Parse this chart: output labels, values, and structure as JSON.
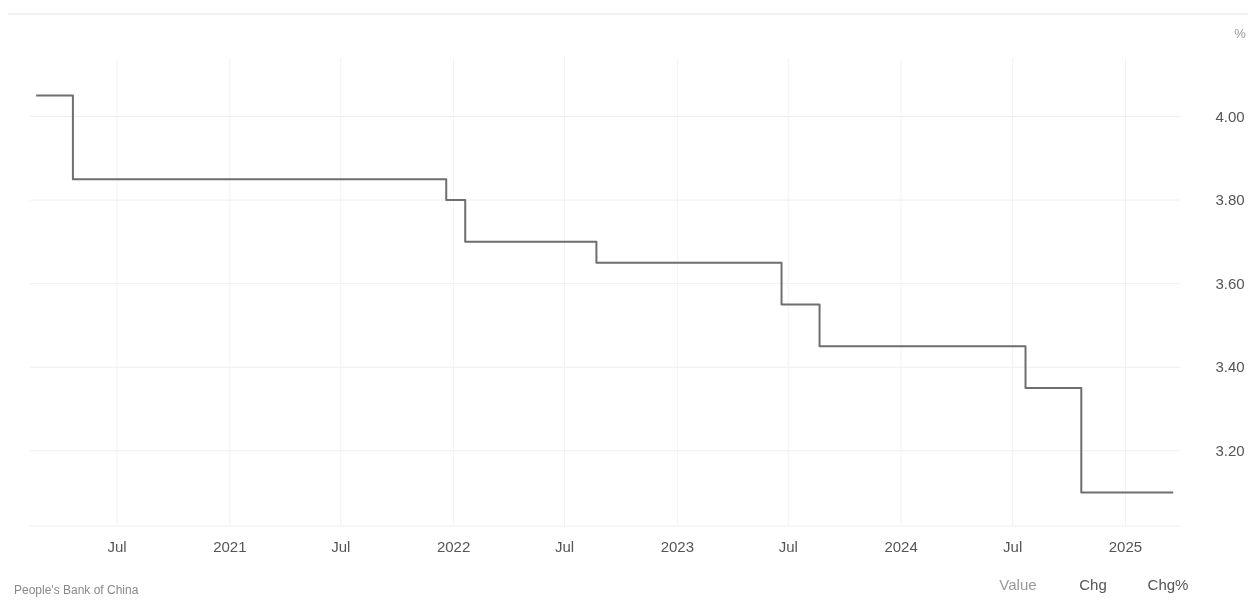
{
  "chart_data": {
    "type": "step",
    "ylabel": "%",
    "x": [
      "2020-02-20",
      "2020-04-20",
      "2021-12-20",
      "2022-01-20",
      "2022-08-22",
      "2023-06-20",
      "2023-08-21",
      "2024-07-22",
      "2024-10-21",
      "2025-03-20"
    ],
    "series": [
      {
        "color": "#6e6e6e",
        "values": [
          4.05,
          3.85,
          3.8,
          3.7,
          3.65,
          3.55,
          3.45,
          3.35,
          3.1,
          3.1
        ]
      }
    ],
    "xlim": [
      "2020-02-10",
      "2025-03-31"
    ],
    "xticks": [
      {
        "value": "2020-07-01",
        "label": "Jul"
      },
      {
        "value": "2021-01-01",
        "label": "2021"
      },
      {
        "value": "2021-07-01",
        "label": "Jul"
      },
      {
        "value": "2022-01-01",
        "label": "2022"
      },
      {
        "value": "2022-07-01",
        "label": "Jul"
      },
      {
        "value": "2023-01-01",
        "label": "2023"
      },
      {
        "value": "2023-07-01",
        "label": "Jul"
      },
      {
        "value": "2024-01-01",
        "label": "2024"
      },
      {
        "value": "2024-07-01",
        "label": "Jul"
      },
      {
        "value": "2025-01-01",
        "label": "2025"
      }
    ],
    "ylim": [
      3.02,
      4.14
    ],
    "yticks": [
      {
        "value": 3.2,
        "label": "3.20"
      },
      {
        "value": 3.4,
        "label": "3.40"
      },
      {
        "value": 3.6,
        "label": "3.60"
      },
      {
        "value": 3.8,
        "label": "3.80"
      },
      {
        "value": 4.0,
        "label": "4.00"
      }
    ],
    "grid": true,
    "marker": "none",
    "line_style": "solid",
    "annotations": [
      "People's Bank of China",
      "Value",
      "Chg",
      "Chg%"
    ]
  }
}
